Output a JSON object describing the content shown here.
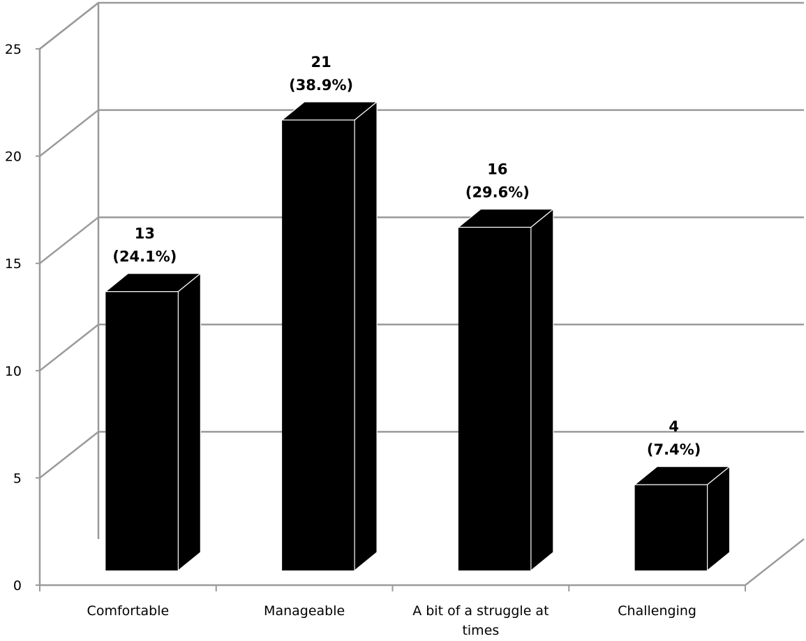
{
  "chart_data": {
    "type": "bar",
    "style": "3d-column",
    "categories": [
      "Comfortable",
      "Manageable",
      "A bit of a struggle at times",
      "Challenging"
    ],
    "category_lines": [
      [
        "Comfortable"
      ],
      [
        "Manageable"
      ],
      [
        "A bit of a struggle at",
        "times"
      ],
      [
        "Challenging"
      ]
    ],
    "values": [
      13,
      21,
      16,
      4
    ],
    "value_labels": [
      "13",
      "21",
      "16",
      "4"
    ],
    "percent_labels": [
      "(24.1%)",
      "(38.9%)",
      "(29.6%)",
      "(7.4%)"
    ],
    "y_ticks": [
      "0",
      "5",
      "10",
      "15",
      "20",
      "25"
    ],
    "ylim": [
      0,
      25
    ],
    "grid": true,
    "legend": "none",
    "colors": {
      "bar": "#000000",
      "grid": "#9a9a9a",
      "axis": "#9a9a9a"
    }
  }
}
